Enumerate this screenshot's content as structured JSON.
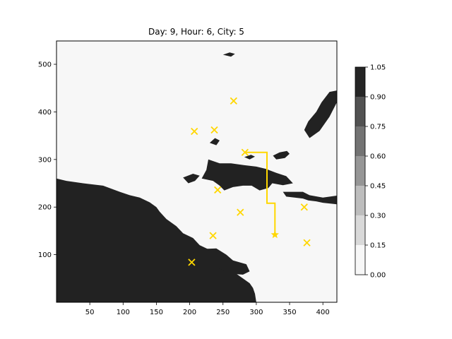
{
  "chart_data": {
    "type": "heatmap",
    "title": "Day: 9, Hour: 6, City: 5",
    "xlabel": "",
    "ylabel": "",
    "xlim": [
      0,
      421
    ],
    "ylim": [
      0,
      549
    ],
    "x_ticks": [
      50,
      100,
      150,
      200,
      250,
      300,
      350,
      400
    ],
    "y_ticks": [
      100,
      200,
      300,
      400,
      500
    ],
    "grid": false,
    "colors": {
      "land": "#222222",
      "sea": "#f7f7f7",
      "marker": "#ffd700"
    },
    "land_regions": [
      [
        [
          0,
          0
        ],
        [
          0,
          260
        ],
        [
          15,
          255
        ],
        [
          40,
          250
        ],
        [
          70,
          245
        ],
        [
          95,
          232
        ],
        [
          110,
          225
        ],
        [
          125,
          220
        ],
        [
          140,
          210
        ],
        [
          150,
          200
        ],
        [
          155,
          190
        ],
        [
          165,
          175
        ],
        [
          180,
          160
        ],
        [
          190,
          145
        ],
        [
          205,
          135
        ],
        [
          215,
          120
        ],
        [
          230,
          110
        ],
        [
          240,
          100
        ],
        [
          245,
          88
        ],
        [
          250,
          78
        ],
        [
          260,
          70
        ],
        [
          270,
          60
        ],
        [
          280,
          50
        ],
        [
          290,
          40
        ],
        [
          295,
          30
        ],
        [
          298,
          18
        ],
        [
          300,
          0
        ]
      ],
      [
        [
          200,
          80
        ],
        [
          205,
          105
        ],
        [
          220,
          112
        ],
        [
          240,
          113
        ],
        [
          255,
          100
        ],
        [
          265,
          88
        ],
        [
          285,
          80
        ],
        [
          290,
          65
        ],
        [
          280,
          58
        ],
        [
          262,
          60
        ],
        [
          250,
          68
        ],
        [
          236,
          74
        ],
        [
          215,
          74
        ]
      ],
      [
        [
          228,
          300
        ],
        [
          245,
          292
        ],
        [
          262,
          292
        ],
        [
          282,
          288
        ],
        [
          300,
          285
        ],
        [
          315,
          280
        ],
        [
          330,
          272
        ],
        [
          345,
          265
        ],
        [
          355,
          250
        ],
        [
          340,
          246
        ],
        [
          324,
          250
        ],
        [
          318,
          240
        ],
        [
          305,
          235
        ],
        [
          293,
          245
        ],
        [
          280,
          245
        ],
        [
          265,
          242
        ],
        [
          252,
          235
        ],
        [
          245,
          245
        ],
        [
          235,
          255
        ],
        [
          218,
          260
        ],
        [
          225,
          278
        ]
      ],
      [
        [
          340,
          232
        ],
        [
          370,
          232
        ],
        [
          380,
          225
        ],
        [
          400,
          220
        ],
        [
          421,
          224
        ],
        [
          421,
          206
        ],
        [
          400,
          209
        ],
        [
          390,
          212
        ],
        [
          378,
          214
        ],
        [
          370,
          218
        ],
        [
          345,
          222
        ]
      ],
      [
        [
          380,
          345
        ],
        [
          395,
          360
        ],
        [
          410,
          390
        ],
        [
          421,
          420
        ],
        [
          421,
          445
        ],
        [
          410,
          442
        ],
        [
          398,
          420
        ],
        [
          390,
          400
        ],
        [
          378,
          380
        ],
        [
          372,
          362
        ]
      ],
      [
        [
          325,
          308
        ],
        [
          335,
          315
        ],
        [
          346,
          318
        ],
        [
          350,
          312
        ],
        [
          343,
          303
        ],
        [
          330,
          300
        ]
      ],
      [
        [
          190,
          262
        ],
        [
          205,
          270
        ],
        [
          215,
          266
        ],
        [
          208,
          255
        ],
        [
          198,
          250
        ]
      ],
      [
        [
          282,
          305
        ],
        [
          292,
          310
        ],
        [
          298,
          306
        ],
        [
          290,
          300
        ]
      ],
      [
        [
          230,
          335
        ],
        [
          238,
          345
        ],
        [
          245,
          340
        ],
        [
          240,
          330
        ]
      ],
      [
        [
          250,
          520
        ],
        [
          260,
          525
        ],
        [
          268,
          522
        ],
        [
          262,
          516
        ]
      ]
    ],
    "cities": [
      {
        "x": 266,
        "y": 423
      },
      {
        "x": 207,
        "y": 359
      },
      {
        "x": 237,
        "y": 362
      },
      {
        "x": 283,
        "y": 315
      },
      {
        "x": 242,
        "y": 236
      },
      {
        "x": 276,
        "y": 189
      },
      {
        "x": 372,
        "y": 200
      },
      {
        "x": 235,
        "y": 140
      },
      {
        "x": 376,
        "y": 125
      },
      {
        "x": 203,
        "y": 84
      }
    ],
    "route": [
      {
        "x": 283,
        "y": 315
      },
      {
        "x": 316,
        "y": 315
      },
      {
        "x": 316,
        "y": 208
      },
      {
        "x": 328,
        "y": 208
      },
      {
        "x": 328,
        "y": 142
      }
    ],
    "current_position": {
      "x": 328,
      "y": 142
    },
    "colorbar": {
      "levels": [
        0.0,
        0.15,
        0.3,
        0.45,
        0.6,
        0.75,
        0.9,
        1.05
      ],
      "tick_labels": [
        "0.00",
        "0.15",
        "0.30",
        "0.45",
        "0.60",
        "0.75",
        "0.90",
        "1.05"
      ],
      "colors": [
        "#f7f7f7",
        "#d9d9d9",
        "#bdbdbd",
        "#969696",
        "#737373",
        "#525252",
        "#252525"
      ]
    }
  }
}
